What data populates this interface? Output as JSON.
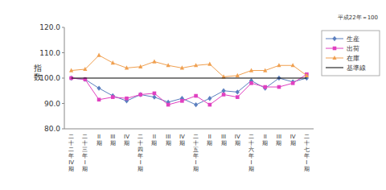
{
  "chart_data": {
    "type": "line",
    "annotation": "平成22年＝100",
    "y_label": "指数",
    "categories": [
      "二十二年IV期",
      "二十三年I期",
      "II期",
      "III期",
      "IV期",
      "二十四年I期",
      "II期",
      "III期",
      "IV期",
      "二十五年I期",
      "II期",
      "III期",
      "IV期",
      "二十六年I期",
      "II期",
      "III期",
      "IV期",
      "二十七年I期"
    ],
    "series": [
      {
        "name": "生産",
        "color": "#5b7fbf",
        "marker": "diamond",
        "values": [
          100,
          99.5,
          96,
          93,
          91,
          93.5,
          92.5,
          90.5,
          92,
          89.5,
          92,
          95,
          94.5,
          99,
          96,
          100,
          98.5,
          100
        ]
      },
      {
        "name": "出荷",
        "color": "#e040c0",
        "marker": "square",
        "values": [
          100,
          99.5,
          91.5,
          92.5,
          92,
          93.5,
          94,
          89.5,
          91,
          93,
          89.5,
          93.5,
          92.5,
          98,
          96.5,
          96.5,
          98,
          101.5
        ]
      },
      {
        "name": "在庫",
        "color": "#f0a050",
        "marker": "triangle",
        "values": [
          103,
          103.5,
          109,
          106,
          104,
          104.5,
          106.5,
          105,
          104,
          105,
          105.5,
          100.5,
          101,
          103,
          103,
          105,
          105,
          101
        ]
      },
      {
        "name": "基準線",
        "color": "#000000",
        "marker": "none",
        "values": [
          100,
          100,
          100,
          100,
          100,
          100,
          100,
          100,
          100,
          100,
          100,
          100,
          100,
          100,
          100,
          100,
          100,
          100
        ]
      }
    ],
    "ylim": [
      80,
      120
    ],
    "yticks": [
      {
        "value": 80,
        "label": "80.0"
      },
      {
        "value": 90,
        "label": "90.0"
      },
      {
        "value": 100,
        "label": "100.0"
      },
      {
        "value": 110,
        "label": "110.0"
      },
      {
        "value": 120,
        "label": "120.0"
      }
    ],
    "grid": false,
    "legend": "right"
  }
}
